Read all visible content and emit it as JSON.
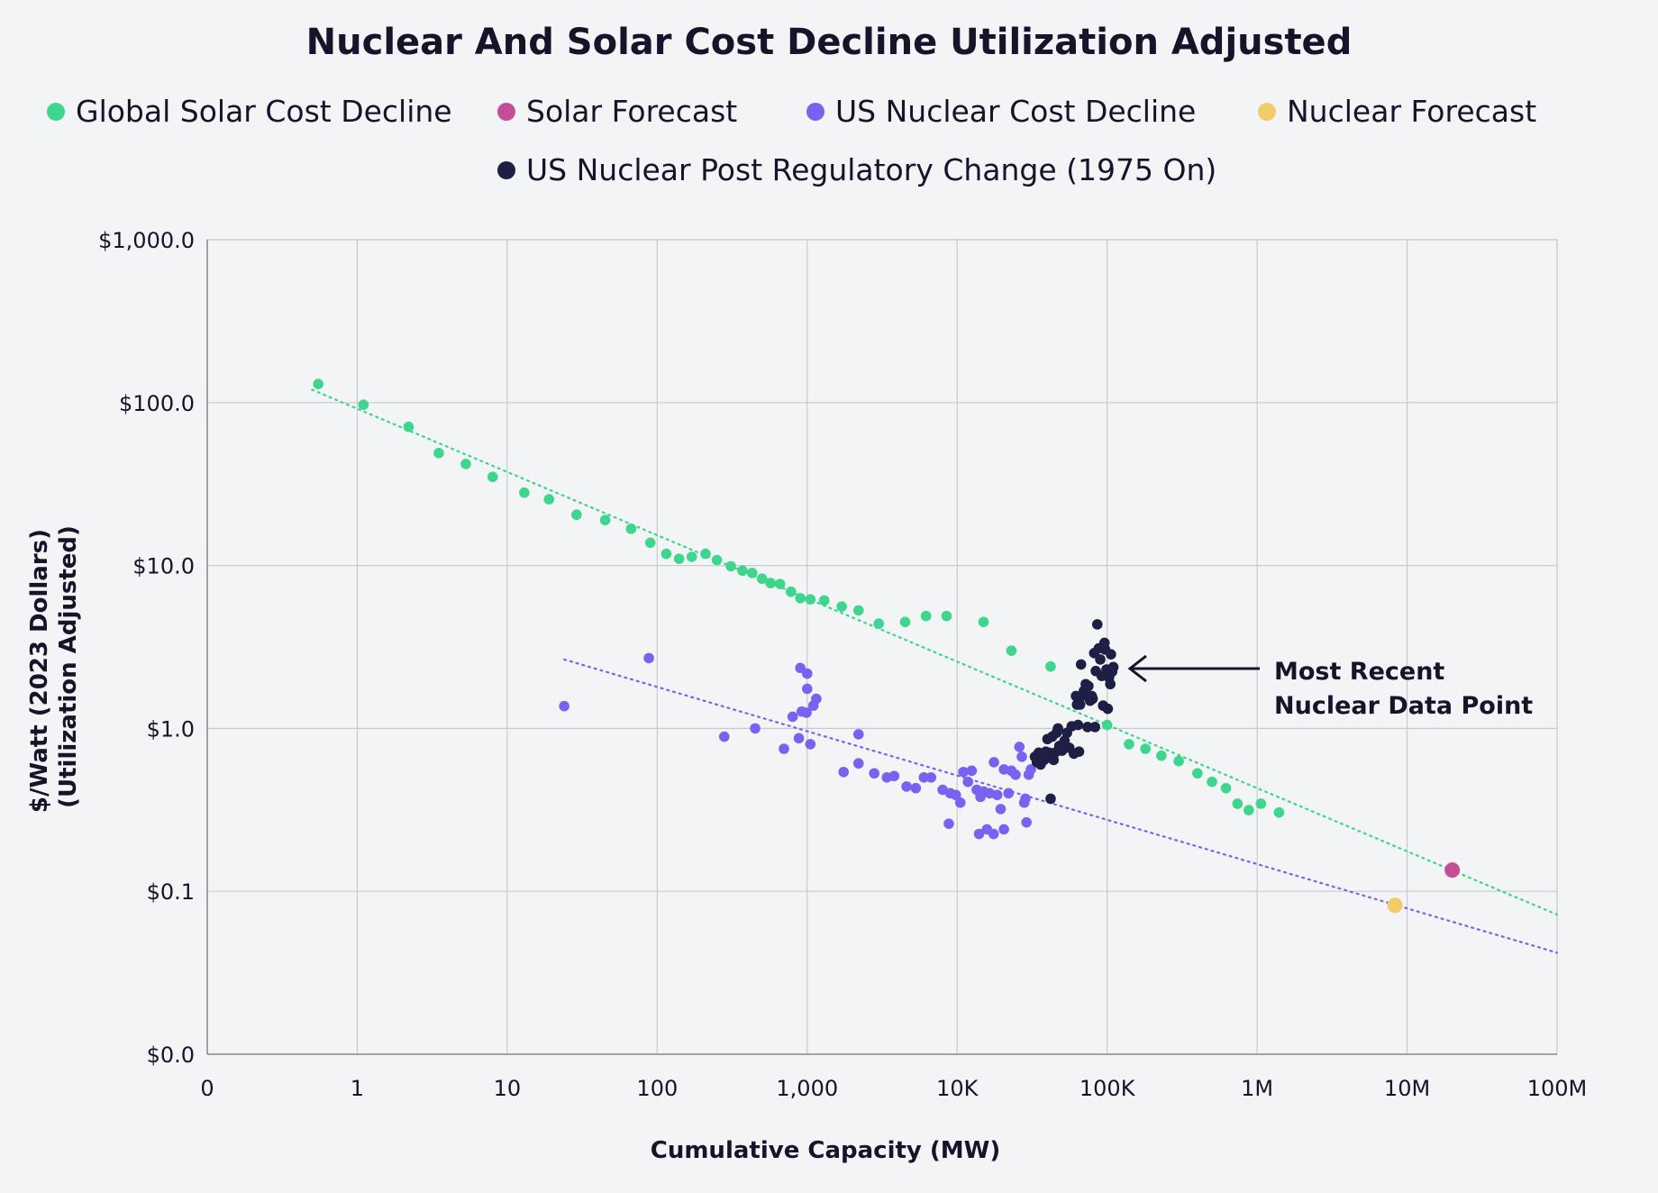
{
  "chart_data": {
    "type": "scatter",
    "title": "Nuclear And Solar Cost Decline Utilization Adjusted",
    "xlabel": "Cumulative Capacity (MW)",
    "ylabel_line1": "$/Watt (2023 Dollars)",
    "ylabel_line2": "(Utilization Adjusted)",
    "x_scale": "log",
    "y_scale": "log",
    "xlim": [
      0.1,
      100000000
    ],
    "ylim": [
      0.01,
      1000
    ],
    "grid": true,
    "legend_position": "top",
    "x_ticks": [
      {
        "value": 0.1,
        "label": "0"
      },
      {
        "value": 1,
        "label": "1"
      },
      {
        "value": 10,
        "label": "10"
      },
      {
        "value": 100,
        "label": "100"
      },
      {
        "value": 1000,
        "label": "1,000"
      },
      {
        "value": 10000,
        "label": "10K"
      },
      {
        "value": 100000,
        "label": "100K"
      },
      {
        "value": 1000000,
        "label": "1M"
      },
      {
        "value": 10000000,
        "label": "10M"
      },
      {
        "value": 100000000,
        "label": "100M"
      }
    ],
    "y_ticks": [
      {
        "value": 1000,
        "label": "$1,000.0"
      },
      {
        "value": 100,
        "label": "$100.0"
      },
      {
        "value": 10,
        "label": "$10.0"
      },
      {
        "value": 1,
        "label": "$1.0"
      },
      {
        "value": 0.1,
        "label": "$0.1"
      },
      {
        "value": 0.01,
        "label": "$0.0"
      }
    ],
    "series": [
      {
        "name": "Global Solar Cost Decline",
        "color": "#3dd68c",
        "points": [
          [
            0.55,
            130
          ],
          [
            1.1,
            97
          ],
          [
            2.2,
            71
          ],
          [
            3.5,
            49
          ],
          [
            5.3,
            42
          ],
          [
            8,
            35
          ],
          [
            13,
            28
          ],
          [
            19,
            25.5
          ],
          [
            29,
            20.5
          ],
          [
            45,
            19
          ],
          [
            67,
            16.8
          ],
          [
            90,
            13.8
          ],
          [
            115,
            11.8
          ],
          [
            140,
            11
          ],
          [
            170,
            11.3
          ],
          [
            210,
            11.8
          ],
          [
            250,
            10.8
          ],
          [
            310,
            9.9
          ],
          [
            370,
            9.3
          ],
          [
            430,
            9
          ],
          [
            500,
            8.3
          ],
          [
            570,
            7.8
          ],
          [
            660,
            7.7
          ],
          [
            780,
            6.9
          ],
          [
            900,
            6.3
          ],
          [
            1050,
            6.2
          ],
          [
            1300,
            6.1
          ],
          [
            1700,
            5.6
          ],
          [
            2200,
            5.3
          ],
          [
            3000,
            4.4
          ],
          [
            4500,
            4.5
          ],
          [
            6200,
            4.9
          ],
          [
            8500,
            4.9
          ],
          [
            15000,
            4.5
          ],
          [
            23000,
            3
          ],
          [
            42000,
            2.4
          ],
          [
            100000,
            1.05
          ],
          [
            140000,
            0.8
          ],
          [
            180000,
            0.75
          ],
          [
            230000,
            0.68
          ],
          [
            300000,
            0.63
          ],
          [
            400000,
            0.53
          ],
          [
            500000,
            0.47
          ],
          [
            620000,
            0.43
          ],
          [
            740000,
            0.345
          ],
          [
            880000,
            0.315
          ],
          [
            1060000,
            0.345
          ],
          [
            1400000,
            0.305
          ]
        ]
      },
      {
        "name": "Solar Forecast",
        "color": "#c54f96",
        "points": [
          [
            20000000,
            0.135
          ]
        ]
      },
      {
        "name": "US Nuclear Cost Decline",
        "color": "#7a62f0",
        "points": [
          [
            24,
            1.37
          ],
          [
            88,
            2.7
          ],
          [
            280,
            0.89
          ],
          [
            450,
            1.0
          ],
          [
            700,
            0.75
          ],
          [
            800,
            1.18
          ],
          [
            880,
            0.87
          ],
          [
            900,
            2.35
          ],
          [
            920,
            1.27
          ],
          [
            990,
            1.25
          ],
          [
            1000,
            2.17
          ],
          [
            1050,
            0.8
          ],
          [
            1100,
            1.38
          ],
          [
            1150,
            1.52
          ],
          [
            1000,
            1.75
          ],
          [
            1750,
            0.54
          ],
          [
            2200,
            0.61
          ],
          [
            2200,
            0.92
          ],
          [
            2800,
            0.53
          ],
          [
            3400,
            0.5
          ],
          [
            3800,
            0.51
          ],
          [
            4600,
            0.44
          ],
          [
            5300,
            0.43
          ],
          [
            6000,
            0.5
          ],
          [
            6700,
            0.5
          ],
          [
            8000,
            0.42
          ],
          [
            9000,
            0.4
          ],
          [
            9800,
            0.39
          ],
          [
            10500,
            0.35
          ],
          [
            11000,
            0.54
          ],
          [
            11800,
            0.47
          ],
          [
            12500,
            0.55
          ],
          [
            13500,
            0.42
          ],
          [
            14300,
            0.38
          ],
          [
            15000,
            0.41
          ],
          [
            16500,
            0.4
          ],
          [
            17600,
            0.62
          ],
          [
            18500,
            0.39
          ],
          [
            19500,
            0.32
          ],
          [
            20500,
            0.56
          ],
          [
            22000,
            0.4
          ],
          [
            23000,
            0.55
          ],
          [
            24500,
            0.52
          ],
          [
            26000,
            0.77
          ],
          [
            27000,
            0.67
          ],
          [
            28000,
            0.35
          ],
          [
            28500,
            0.37
          ],
          [
            30000,
            0.52
          ],
          [
            31000,
            0.56
          ],
          [
            8800,
            0.26
          ],
          [
            14000,
            0.225
          ],
          [
            15800,
            0.24
          ],
          [
            17500,
            0.225
          ],
          [
            20500,
            0.24
          ],
          [
            29000,
            0.265
          ]
        ]
      },
      {
        "name": "Nuclear Forecast",
        "color": "#f2cc6b",
        "points": [
          [
            8300000,
            0.082
          ]
        ]
      },
      {
        "name": "US Nuclear Post Regulatory Change (1975 On)",
        "color": "#1e1f45",
        "points": [
          [
            33000,
            0.67
          ],
          [
            34000,
            0.62
          ],
          [
            35000,
            0.71
          ],
          [
            36000,
            0.6
          ],
          [
            37000,
            0.66
          ],
          [
            38000,
            0.64
          ],
          [
            39000,
            0.72
          ],
          [
            40000,
            0.86
          ],
          [
            41000,
            0.71
          ],
          [
            42000,
            0.37
          ],
          [
            43000,
            0.89
          ],
          [
            44000,
            0.64
          ],
          [
            45000,
            0.71
          ],
          [
            46000,
            0.94
          ],
          [
            47000,
            1.0
          ],
          [
            48000,
            0.78
          ],
          [
            50000,
            0.73
          ],
          [
            52000,
            0.84
          ],
          [
            54000,
            0.94
          ],
          [
            56000,
            0.76
          ],
          [
            58000,
            1.03
          ],
          [
            60000,
            0.7
          ],
          [
            62000,
            1.58
          ],
          [
            63000,
            1.4
          ],
          [
            64000,
            1.05
          ],
          [
            65000,
            0.72
          ],
          [
            66000,
            1.4
          ],
          [
            67000,
            2.47
          ],
          [
            68000,
            1.58
          ],
          [
            70000,
            1.7
          ],
          [
            72000,
            1.87
          ],
          [
            74000,
            1.02
          ],
          [
            75000,
            1.82
          ],
          [
            77000,
            1.48
          ],
          [
            79000,
            1.58
          ],
          [
            80000,
            1.52
          ],
          [
            82000,
            2.9
          ],
          [
            83000,
            1.02
          ],
          [
            84000,
            2.25
          ],
          [
            86000,
            4.35
          ],
          [
            88000,
            3.1
          ],
          [
            90000,
            2.65
          ],
          [
            92000,
            2.1
          ],
          [
            94000,
            1.38
          ],
          [
            96000,
            3.35
          ],
          [
            97000,
            3.05
          ],
          [
            99000,
            2.3
          ],
          [
            101000,
            1.32
          ],
          [
            103000,
            2.05
          ],
          [
            105000,
            1.87
          ],
          [
            106000,
            2.85
          ],
          [
            108000,
            2.23
          ],
          [
            110000,
            2.38
          ]
        ]
      }
    ],
    "trendlines": [
      {
        "series": "Global Solar Cost Decline",
        "color": "#3dd68c",
        "from": [
          0.5,
          120
        ],
        "to": [
          100000000,
          0.072
        ]
      },
      {
        "series": "US Nuclear Cost Decline",
        "color": "#7a62f0",
        "from": [
          24,
          2.65
        ],
        "to": [
          100000000,
          0.042
        ]
      }
    ],
    "annotation": {
      "line1": "Most Recent",
      "line2": "Nuclear Data Point",
      "target": [
        110000,
        2.3
      ]
    }
  }
}
